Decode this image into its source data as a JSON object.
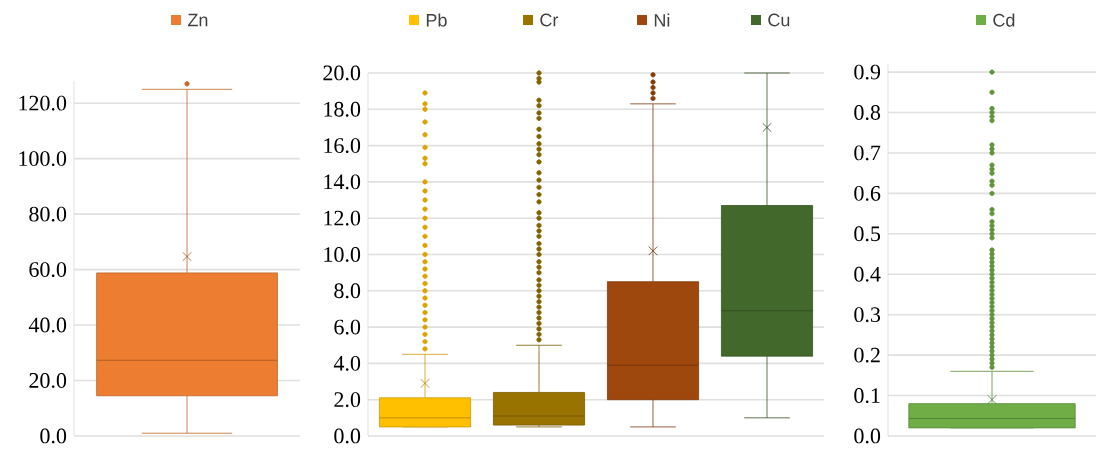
{
  "chart_data": [
    {
      "type": "box",
      "categories": [
        null
      ],
      "ylim": [
        0,
        128
      ],
      "yticks": [
        {
          "value": 0,
          "label": "0.0"
        },
        {
          "value": 20,
          "label": "20.0"
        },
        {
          "value": 40,
          "label": "40.0"
        },
        {
          "value": 60,
          "label": "60.0"
        },
        {
          "value": 80,
          "label": "80.0"
        },
        {
          "value": 100,
          "label": "100.0"
        },
        {
          "value": 120,
          "label": "120.0"
        }
      ],
      "grid": "y",
      "legend": "top",
      "marker": "circle",
      "series": [
        {
          "name": "Zn",
          "color": "#ed7d31",
          "boxes": [
            {
              "low": 1,
              "q1": 14.5,
              "median": 27.3,
              "q3": 58.8,
              "high": 125,
              "mean": 64.7,
              "outliers": [
                127
              ]
            }
          ]
        }
      ]
    },
    {
      "type": "box",
      "categories": [
        null
      ],
      "ylim": [
        0,
        20
      ],
      "yticks": [
        {
          "value": 0,
          "label": "0.0"
        },
        {
          "value": 2,
          "label": "2.0"
        },
        {
          "value": 4,
          "label": "4.0"
        },
        {
          "value": 6,
          "label": "6.0"
        },
        {
          "value": 8,
          "label": "8.0"
        },
        {
          "value": 10,
          "label": "10.0"
        },
        {
          "value": 12,
          "label": "12.0"
        },
        {
          "value": 14,
          "label": "14.0"
        },
        {
          "value": 16,
          "label": "16.0"
        },
        {
          "value": 18,
          "label": "18.0"
        },
        {
          "value": 20,
          "label": "20.0"
        }
      ],
      "grid": "y",
      "legend": "top",
      "marker": "circle",
      "series": [
        {
          "name": "Pb",
          "color": "#ffc000",
          "boxes": [
            {
              "low": 0.5,
              "q1": 0.5,
              "median": 1.0,
              "q3": 2.1,
              "high": 4.5,
              "mean": 2.9,
              "outliers": [
                4.8,
                5.2,
                5.6,
                6.0,
                6.4,
                6.8,
                7.2,
                7.6,
                8.0,
                8.4,
                8.8,
                9.2,
                9.6,
                10.0,
                10.5,
                11.0,
                11.5,
                12.0,
                12.5,
                13.0,
                13.5,
                14.0,
                15.0,
                15.3,
                15.9,
                16.6,
                17.3,
                18.0,
                18.3,
                18.9
              ]
            }
          ]
        },
        {
          "name": "Cr",
          "color": "#997300",
          "boxes": [
            {
              "low": 0.5,
              "q1": 0.6,
              "median": 1.1,
              "q3": 2.4,
              "high": 5.0,
              "outliers": [
                5.3,
                5.6,
                5.9,
                6.2,
                6.5,
                6.8,
                7.1,
                7.4,
                7.7,
                8.0,
                8.3,
                8.6,
                9.0,
                9.3,
                9.6,
                10.0,
                10.3,
                10.6,
                11.0,
                11.3,
                11.6,
                12.0,
                12.3,
                12.9,
                13.3,
                13.7,
                14.1,
                14.5,
                15.1,
                15.5,
                15.8,
                16.1,
                16.5,
                16.9,
                17.5,
                17.8,
                18.2,
                18.5,
                19.5,
                19.7,
                20.0
              ]
            }
          ]
        },
        {
          "name": "Ni",
          "color": "#9e480e",
          "boxes": [
            {
              "low": 0.5,
              "q1": 2.0,
              "median": 3.9,
              "q3": 8.5,
              "high": 18.3,
              "mean": 10.2,
              "outliers": [
                18.6,
                18.9,
                19.2,
                19.5,
                19.9
              ]
            }
          ]
        },
        {
          "name": "Cu",
          "color": "#43682b",
          "boxes": [
            {
              "low": 1.0,
              "q1": 4.4,
              "median": 6.9,
              "q3": 12.7,
              "high": 20,
              "mean": 17.0
            }
          ]
        }
      ]
    },
    {
      "type": "box",
      "categories": [
        null
      ],
      "ylim": [
        0,
        0.92
      ],
      "yticks": [
        {
          "value": 0,
          "label": "0.0"
        },
        {
          "value": 0.1,
          "label": "0.1"
        },
        {
          "value": 0.2,
          "label": "0.2"
        },
        {
          "value": 0.3,
          "label": "0.3"
        },
        {
          "value": 0.4,
          "label": "0.4"
        },
        {
          "value": 0.5,
          "label": "0.5"
        },
        {
          "value": 0.6,
          "label": "0.6"
        },
        {
          "value": 0.7,
          "label": "0.7"
        },
        {
          "value": 0.8,
          "label": "0.8"
        },
        {
          "value": 0.9,
          "label": "0.9"
        }
      ],
      "grid": "y",
      "legend": "top",
      "marker": "circle",
      "series": [
        {
          "name": "Cd",
          "color": "#70ad47",
          "boxes": [
            {
              "low": 0.02,
              "q1": 0.02,
              "median": 0.043,
              "q3": 0.08,
              "high": 0.16,
              "mean": 0.09,
              "outliers": [
                0.17,
                0.18,
                0.19,
                0.2,
                0.21,
                0.22,
                0.23,
                0.24,
                0.25,
                0.26,
                0.27,
                0.28,
                0.29,
                0.3,
                0.31,
                0.32,
                0.33,
                0.34,
                0.35,
                0.36,
                0.37,
                0.38,
                0.39,
                0.4,
                0.41,
                0.42,
                0.43,
                0.44,
                0.45,
                0.46,
                0.49,
                0.5,
                0.51,
                0.52,
                0.53,
                0.55,
                0.56,
                0.6,
                0.62,
                0.63,
                0.65,
                0.66,
                0.67,
                0.7,
                0.71,
                0.72,
                0.78,
                0.79,
                0.8,
                0.81,
                0.85,
                0.9
              ]
            }
          ]
        }
      ]
    }
  ]
}
